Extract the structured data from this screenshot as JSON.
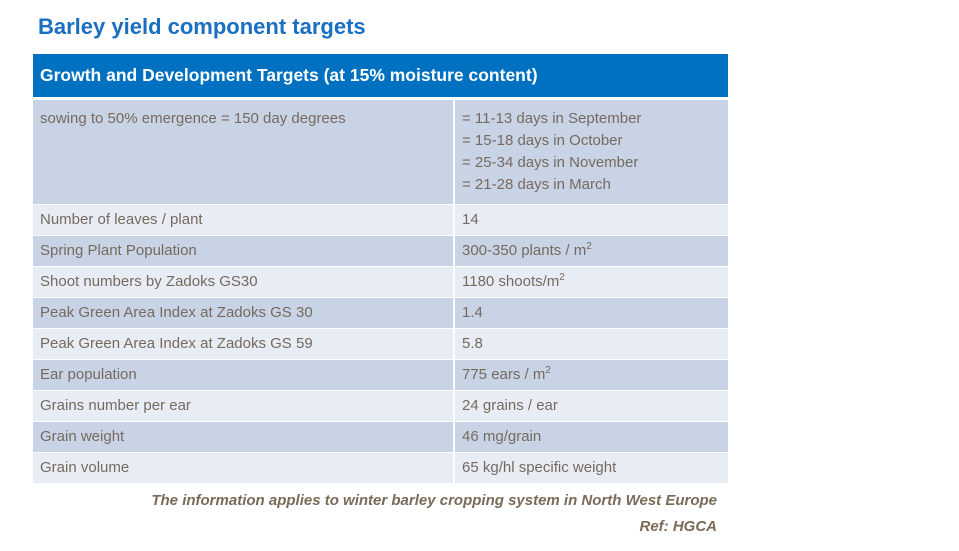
{
  "title": "Barley yield component targets",
  "table": {
    "header": "Growth and Development Targets (at 15% moisture content)",
    "first_row": {
      "label": "sowing to 50% emergence = 150 day degrees",
      "values": [
        "= 11-13 days  in September",
        "= 15-18 days in October",
        "= 25-34 days in November",
        "= 21-28 days in March"
      ]
    },
    "rows": [
      {
        "label": "Number of leaves / plant",
        "value": "14",
        "sup": ""
      },
      {
        "label": "Spring Plant Population",
        "value": "300-350 plants  / m",
        "sup": "2"
      },
      {
        "label": "Shoot numbers  by Zadoks GS30",
        "value": "1180 shoots/m",
        "sup": "2"
      },
      {
        "label": "Peak Green Area Index  at Zadoks GS 30",
        "value": "1.4",
        "sup": ""
      },
      {
        "label": "Peak Green Area Index  at Zadoks GS 59",
        "value": "5.8",
        "sup": ""
      },
      {
        "label": "Ear population",
        "value": "775 ears / m",
        "sup": "2"
      },
      {
        "label": "Grains number per ear",
        "value": "24 grains / ear",
        "sup": ""
      },
      {
        "label": "Grain weight",
        "value": "46 mg/grain",
        "sup": ""
      },
      {
        "label": "Grain volume",
        "value": "65 kg/hl  specific weight",
        "sup": ""
      }
    ]
  },
  "footnote": "The information applies to winter barley cropping  system in North West Europe",
  "reference": "Ref: HGCA",
  "colors": {
    "header": "#0070c0",
    "row_dark": "#c9d3e6",
    "row_light": "#e8ecf5",
    "title": "#1a6fc1"
  }
}
